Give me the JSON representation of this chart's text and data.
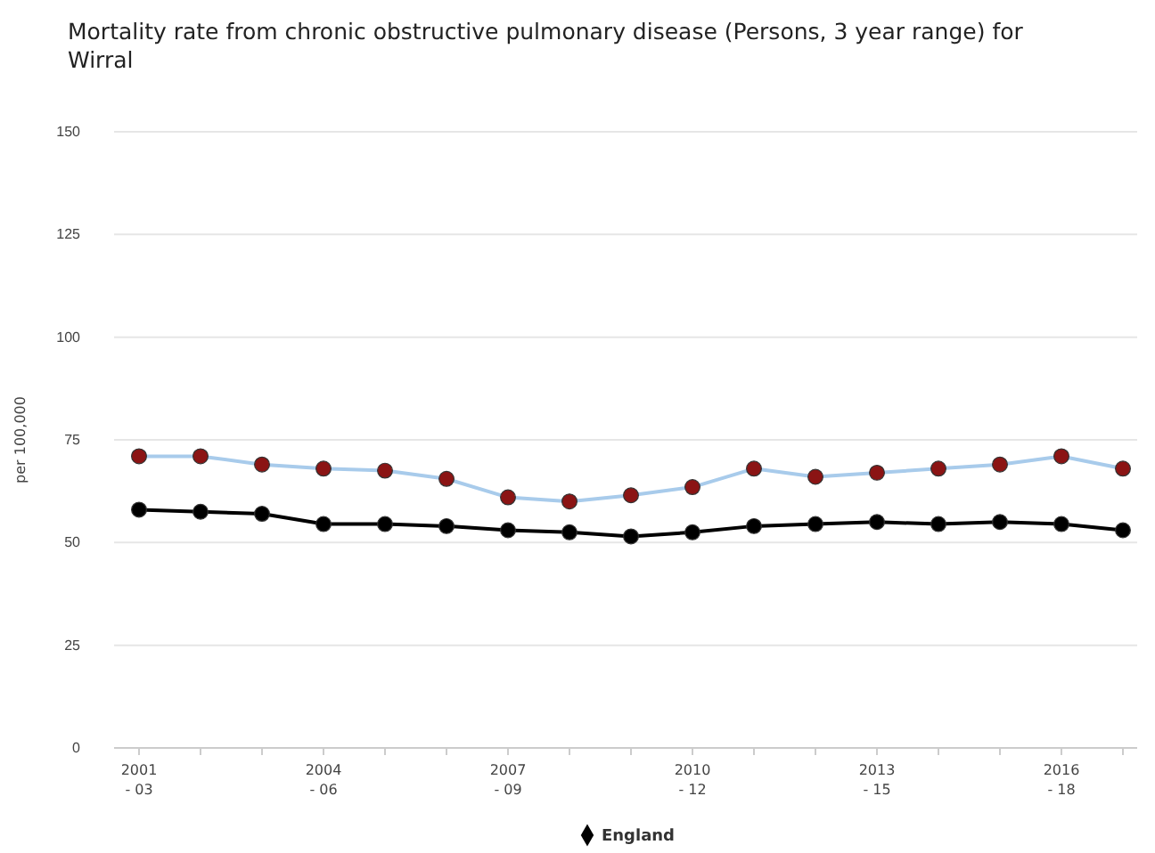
{
  "chart_data": {
    "type": "line",
    "title": "Mortality rate from chronic obstructive pulmonary disease (Persons, 3 year range) for Wirral",
    "ylabel": "per 100,000",
    "categories": [
      "2001 - 03",
      null,
      null,
      "2004 - 06",
      null,
      null,
      "2007 - 09",
      null,
      null,
      "2010 - 12",
      null,
      null,
      "2013 - 15",
      null,
      null,
      "2016 - 18",
      null
    ],
    "series": [
      {
        "color": "#a8cbeb",
        "colors": [
          "#8b1414",
          "#8b1414",
          "#8b1414",
          "#8b1414",
          "#8b1414",
          "#8b1414",
          "#8b1414",
          "#8b1414",
          "#8b1414",
          "#8b1414",
          "#8b1414",
          "#8b1414",
          "#8b1414",
          "#8b1414",
          "#8b1414",
          "#8b1414",
          "#8b1414"
        ],
        "values": [
          71,
          71,
          69,
          68,
          67.5,
          65.5,
          61,
          60,
          61.5,
          63.5,
          68,
          66,
          67,
          68,
          69,
          71,
          68
        ]
      },
      {
        "name": "England",
        "color": "#000000",
        "values": [
          58,
          57.5,
          57,
          54.5,
          54.5,
          54,
          53,
          52.5,
          51.5,
          52.5,
          54,
          54.5,
          55,
          54.5,
          55,
          54.5,
          53
        ]
      }
    ],
    "ylim": [
      0,
      150
    ],
    "yticks": [
      0,
      25,
      50,
      75,
      100,
      125,
      150
    ],
    "grid": "y",
    "legend": "bottom",
    "marker": "circle"
  }
}
